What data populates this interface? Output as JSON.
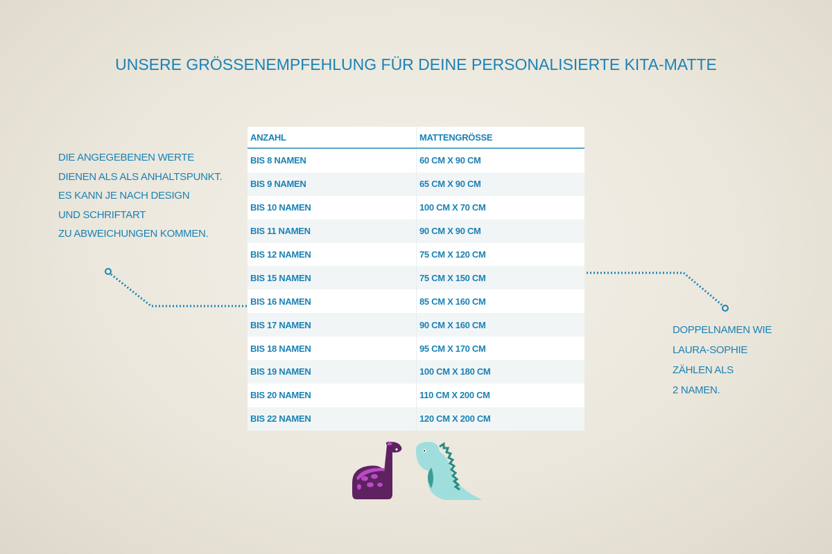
{
  "title": "Unsere Größenempfehlung für deine personalisierte Kita-Matte",
  "note_left": [
    "Die angegebenen Werte",
    "dienen als als Anhaltspunkt.",
    "Es kann je nach Design",
    "und Schriftart",
    "zu Abweichungen kommen."
  ],
  "note_right": [
    "Doppelnamen wie",
    "Laura-Sophie",
    "zählen als",
    "2 Namen."
  ],
  "table": {
    "headers": [
      "Anzahl",
      "Mattengröße"
    ],
    "rows": [
      [
        "bis 8 Namen",
        "60 cm x 90 cm"
      ],
      [
        "bis 9 Namen",
        "65 cm x 90 cm"
      ],
      [
        "bis 10 Namen",
        "100 cm x 70 cm"
      ],
      [
        "bis 11 Namen",
        "90 cm x 90 cm"
      ],
      [
        "bis 12 Namen",
        "75 cm x 120 cm"
      ],
      [
        "bis 15 Namen",
        "75 cm x 150 cm"
      ],
      [
        "bis 16 Namen",
        "85 cm x 160 cm"
      ],
      [
        "bis 17 Namen",
        "90 cm x 160 cm"
      ],
      [
        "bis 18 Namen",
        "95 cm x 170 cm"
      ],
      [
        "bis 19 Namen",
        "100 cm x 180 cm"
      ],
      [
        "bis 20 Namen",
        "110 cm x 200 cm"
      ],
      [
        "bis 22 Namen",
        "120 cm x 200 cm"
      ]
    ]
  },
  "colors": {
    "accent": "#1b82b5",
    "purple_dino": "#5e2260",
    "teal_dino": "#9fdedd"
  },
  "illustration": "two-dinosaurs"
}
